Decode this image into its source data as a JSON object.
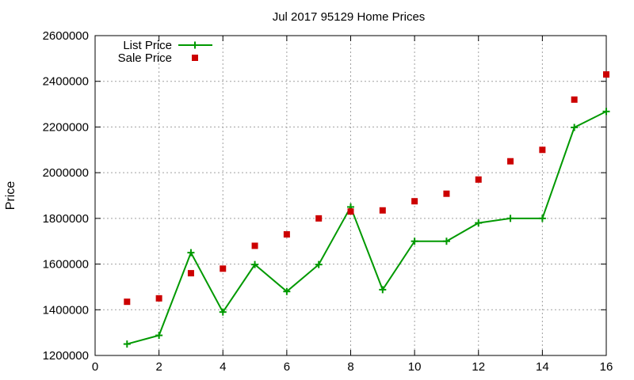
{
  "chart_data": {
    "type": "line",
    "title": "Jul 2017 95129 Home Prices",
    "xlabel": "",
    "ylabel": "Price",
    "xlim": [
      0,
      16
    ],
    "ylim": [
      1200000,
      2600000
    ],
    "xticks": [
      0,
      2,
      4,
      6,
      8,
      10,
      12,
      14,
      16
    ],
    "yticks": [
      1200000,
      1400000,
      1600000,
      1800000,
      2000000,
      2200000,
      2400000,
      2600000
    ],
    "grid": true,
    "legend_position": "top-left",
    "series": [
      {
        "name": "List Price",
        "style": "line-plus",
        "color": "#009900",
        "x": [
          1,
          2,
          3,
          4,
          5,
          6,
          7,
          8,
          9,
          10,
          11,
          12,
          13,
          14,
          15,
          16
        ],
        "y": [
          1250000,
          1288000,
          1650000,
          1390000,
          1598000,
          1480000,
          1598000,
          1850000,
          1488000,
          1700000,
          1700000,
          1780000,
          1800000,
          1800000,
          2198000,
          2268000
        ]
      },
      {
        "name": "Sale Price",
        "style": "square-points",
        "color": "#cc0000",
        "x": [
          1,
          2,
          3,
          4,
          5,
          6,
          7,
          8,
          9,
          10,
          11,
          12,
          13,
          14,
          15,
          16
        ],
        "y": [
          1435000,
          1450000,
          1560000,
          1580000,
          1680000,
          1730000,
          1800000,
          1830000,
          1835000,
          1875000,
          1908000,
          1970000,
          2050000,
          2100000,
          2320000,
          2430000
        ]
      }
    ]
  }
}
